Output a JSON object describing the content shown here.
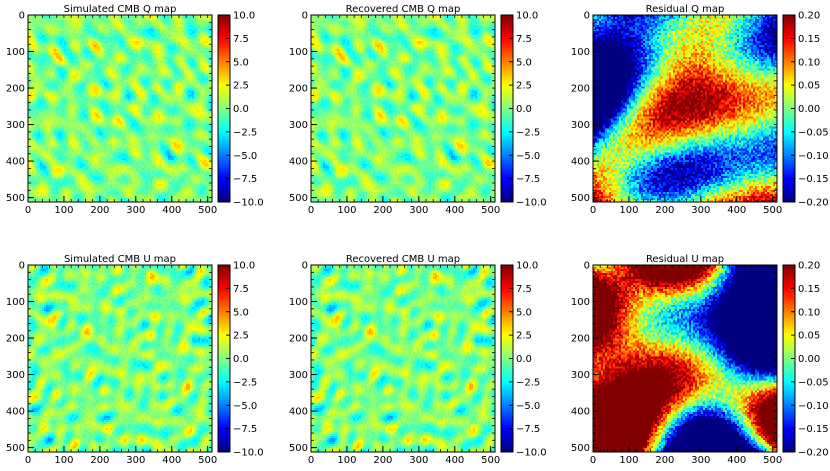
{
  "chart_data": [
    {
      "type": "heatmap",
      "title": "Simulated CMB Q map",
      "map_kind": "cmb",
      "xlim": [
        0,
        512
      ],
      "ylim": [
        512,
        0
      ],
      "xticks": [
        "0",
        "100",
        "200",
        "300",
        "400",
        "500"
      ],
      "yticks": [
        "0",
        "100",
        "200",
        "300",
        "400",
        "500"
      ],
      "colorbar": {
        "min": -10.0,
        "max": 10.0,
        "ticks": [
          "10.0",
          "7.5",
          "5.0",
          "2.5",
          "0.0",
          "−2.5",
          "−5.0",
          "−7.5",
          "−10.0"
        ]
      },
      "seed": 11
    },
    {
      "type": "heatmap",
      "title": "Recovered CMB Q map",
      "map_kind": "cmb",
      "xlim": [
        0,
        512
      ],
      "ylim": [
        512,
        0
      ],
      "xticks": [
        "0",
        "100",
        "200",
        "300",
        "400",
        "500"
      ],
      "yticks": [
        "0",
        "100",
        "200",
        "300",
        "400",
        "500"
      ],
      "colorbar": {
        "min": -10.0,
        "max": 10.0,
        "ticks": [
          "10.0",
          "7.5",
          "5.0",
          "2.5",
          "0.0",
          "−2.5",
          "−5.0",
          "−7.5",
          "−10.0"
        ]
      },
      "seed": 11
    },
    {
      "type": "heatmap",
      "title": "Residual Q map",
      "map_kind": "residual",
      "xlim": [
        0,
        512
      ],
      "ylim": [
        512,
        0
      ],
      "xticks": [
        "0",
        "100",
        "200",
        "300",
        "400",
        "500"
      ],
      "yticks": [
        "0",
        "100",
        "200",
        "300",
        "400",
        "500"
      ],
      "colorbar": {
        "min": -0.2,
        "max": 0.2,
        "ticks": [
          "0.20",
          "0.15",
          "0.10",
          "0.05",
          "0.00",
          "−0.05",
          "−0.10",
          "−0.15",
          "−0.20"
        ]
      },
      "seed": 29
    },
    {
      "type": "heatmap",
      "title": "Simulated CMB U map",
      "map_kind": "cmb",
      "xlim": [
        0,
        512
      ],
      "ylim": [
        512,
        0
      ],
      "xticks": [
        "0",
        "100",
        "200",
        "300",
        "400",
        "500"
      ],
      "yticks": [
        "0",
        "100",
        "200",
        "300",
        "400",
        "500"
      ],
      "colorbar": {
        "min": -10.0,
        "max": 10.0,
        "ticks": [
          "10.0",
          "7.5",
          "5.0",
          "2.5",
          "0.0",
          "−2.5",
          "−5.0",
          "−7.5",
          "−10.0"
        ]
      },
      "seed": 53
    },
    {
      "type": "heatmap",
      "title": "Recovered CMB U map",
      "map_kind": "cmb",
      "xlim": [
        0,
        512
      ],
      "ylim": [
        512,
        0
      ],
      "xticks": [
        "0",
        "100",
        "200",
        "300",
        "400",
        "500"
      ],
      "yticks": [
        "0",
        "100",
        "200",
        "300",
        "400",
        "500"
      ],
      "colorbar": {
        "min": -10.0,
        "max": 10.0,
        "ticks": [
          "10.0",
          "7.5",
          "5.0",
          "2.5",
          "0.0",
          "−2.5",
          "−5.0",
          "−7.5",
          "−10.0"
        ]
      },
      "seed": 53
    },
    {
      "type": "heatmap",
      "title": "Residual U map",
      "map_kind": "residual",
      "xlim": [
        0,
        512
      ],
      "ylim": [
        512,
        0
      ],
      "xticks": [
        "0",
        "100",
        "200",
        "300",
        "400",
        "500"
      ],
      "yticks": [
        "0",
        "100",
        "200",
        "300",
        "400",
        "500"
      ],
      "colorbar": {
        "min": -0.2,
        "max": 0.2,
        "ticks": [
          "0.20",
          "0.15",
          "0.10",
          "0.05",
          "0.00",
          "−0.05",
          "−0.10",
          "−0.15",
          "−0.20"
        ]
      },
      "seed": 71
    }
  ],
  "colormap": "jet",
  "colors": {
    "axis": "#000000",
    "background": "#ffffff"
  }
}
